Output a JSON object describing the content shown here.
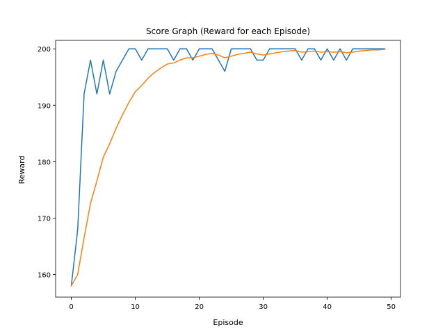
{
  "chart_data": {
    "type": "line",
    "title": "Score Graph (Reward for each Episode)",
    "xlabel": "Episode",
    "ylabel": "Reward",
    "xlim": [
      -2.45,
      51.45
    ],
    "ylim": [
      156,
      201.5
    ],
    "xticks": [
      0,
      10,
      20,
      30,
      40,
      50
    ],
    "yticks": [
      160,
      170,
      180,
      190,
      200
    ],
    "grid": false,
    "series": [
      {
        "color": "#1f77b4",
        "x": [
          0,
          1,
          2,
          3,
          4,
          5,
          6,
          7,
          8,
          9,
          10,
          11,
          12,
          13,
          14,
          15,
          16,
          17,
          18,
          19,
          20,
          21,
          22,
          23,
          24,
          25,
          26,
          27,
          28,
          29,
          30,
          31,
          32,
          33,
          34,
          35,
          36,
          37,
          38,
          39,
          40,
          41,
          42,
          43,
          44,
          45,
          46,
          47,
          48,
          49
        ],
        "values": [
          158,
          168,
          192,
          198,
          192,
          198,
          192,
          196,
          198,
          200,
          200,
          198,
          200,
          200,
          200,
          200,
          198,
          200,
          200,
          198,
          200,
          200,
          200,
          198,
          196,
          200,
          200,
          200,
          200,
          198,
          198,
          200,
          200,
          200,
          200,
          200,
          198,
          200,
          200,
          198,
          200,
          198,
          200,
          198,
          200,
          200,
          200,
          200,
          200,
          200
        ]
      },
      {
        "color": "#ff7f0e",
        "x": [
          0,
          1,
          2,
          3,
          4,
          5,
          6,
          7,
          8,
          9,
          10,
          11,
          12,
          13,
          14,
          15,
          16,
          17,
          18,
          19,
          20,
          21,
          22,
          23,
          24,
          25,
          26,
          27,
          28,
          29,
          30,
          31,
          32,
          33,
          34,
          35,
          36,
          37,
          38,
          39,
          40,
          41,
          42,
          43,
          44,
          45,
          46,
          47,
          48,
          49
        ],
        "values": [
          158,
          160,
          166.5,
          172.6,
          176.6,
          180.8,
          183.2,
          185.9,
          188.3,
          190.5,
          192.4,
          193.5,
          194.8,
          195.8,
          196.6,
          197.3,
          197.5,
          198.0,
          198.4,
          198.4,
          198.7,
          199.0,
          199.2,
          198.9,
          198.4,
          198.7,
          199.0,
          199.2,
          199.4,
          199.1,
          198.9,
          199.1,
          199.3,
          199.5,
          199.6,
          199.7,
          199.4,
          199.5,
          199.6,
          199.4,
          199.5,
          199.4,
          199.5,
          199.3,
          199.4,
          199.6,
          199.7,
          199.8,
          199.8,
          199.9
        ]
      }
    ]
  }
}
